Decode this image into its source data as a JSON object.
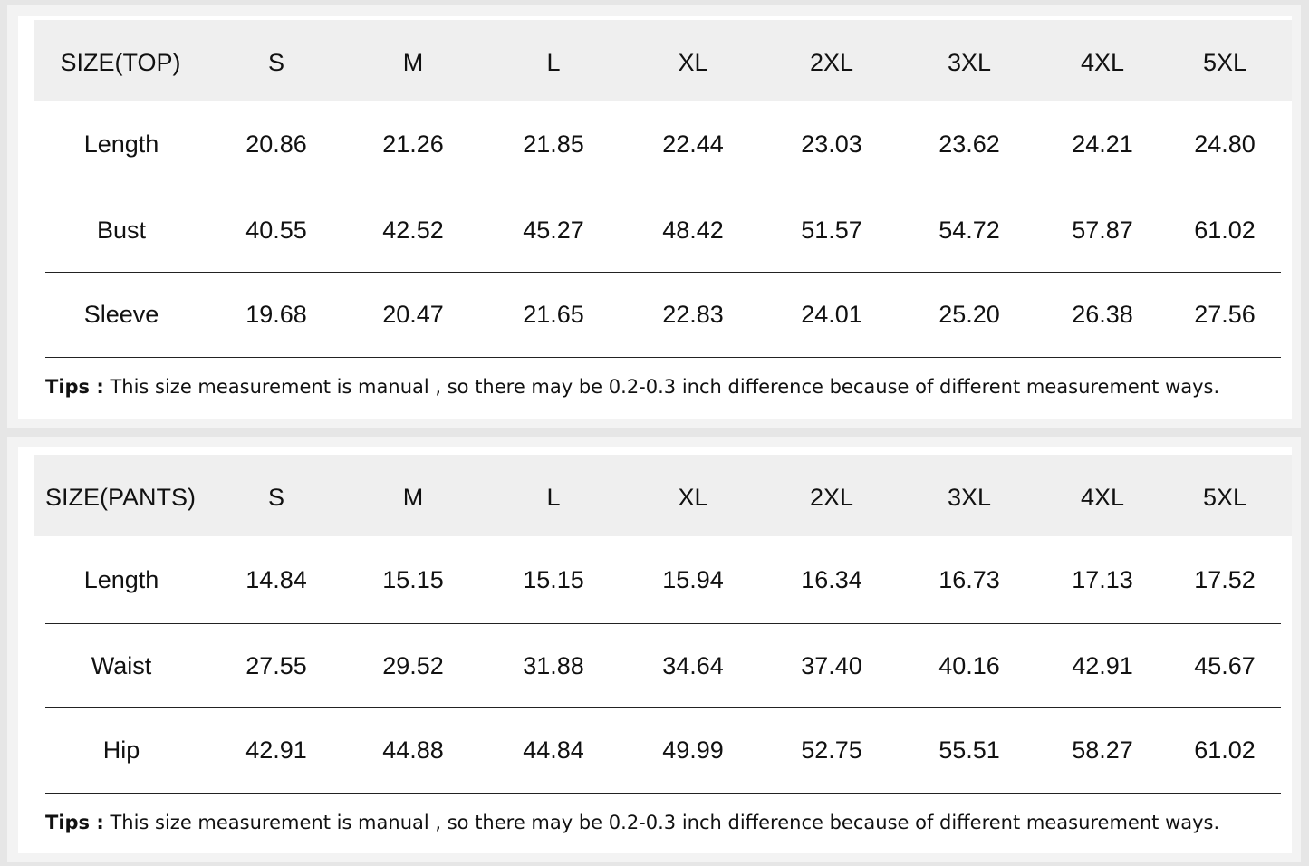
{
  "top_table": {
    "header": [
      "SIZE(TOP)",
      "S",
      "M",
      "L",
      "XL",
      "2XL",
      "3XL",
      "4XL",
      "5XL"
    ],
    "rows": [
      {
        "label": "Length",
        "values": [
          "20.86",
          "21.26",
          "21.85",
          "22.44",
          "23.03",
          "23.62",
          "24.21",
          "24.80"
        ]
      },
      {
        "label": "Bust",
        "values": [
          "40.55",
          "42.52",
          "45.27",
          "48.42",
          "51.57",
          "54.72",
          "57.87",
          "61.02"
        ]
      },
      {
        "label": "Sleeve",
        "values": [
          "19.68",
          "20.47",
          "21.65",
          "22.83",
          "24.01",
          "25.20",
          "26.38",
          "27.56"
        ]
      }
    ],
    "tips_label": "Tips :",
    "tips_text": " This size measurement is manual , so there may be 0.2-0.3 inch difference because of different measurement ways."
  },
  "pants_table": {
    "header": [
      "SIZE(PANTS)",
      "S",
      "M",
      "L",
      "XL",
      "2XL",
      "3XL",
      "4XL",
      "5XL"
    ],
    "rows": [
      {
        "label": "Length",
        "values": [
          "14.84",
          "15.15",
          "15.15",
          "15.94",
          "16.34",
          "16.73",
          "17.13",
          "17.52"
        ]
      },
      {
        "label": "Waist",
        "values": [
          "27.55",
          "29.52",
          "31.88",
          "34.64",
          "37.40",
          "40.16",
          "42.91",
          "45.67"
        ]
      },
      {
        "label": "Hip",
        "values": [
          "42.91",
          "44.88",
          "44.84",
          "49.99",
          "52.75",
          "55.51",
          "58.27",
          "61.02"
        ]
      }
    ],
    "tips_label": "Tips :",
    "tips_text": " This size measurement is manual , so there may be 0.2-0.3 inch difference because of different measurement ways."
  }
}
